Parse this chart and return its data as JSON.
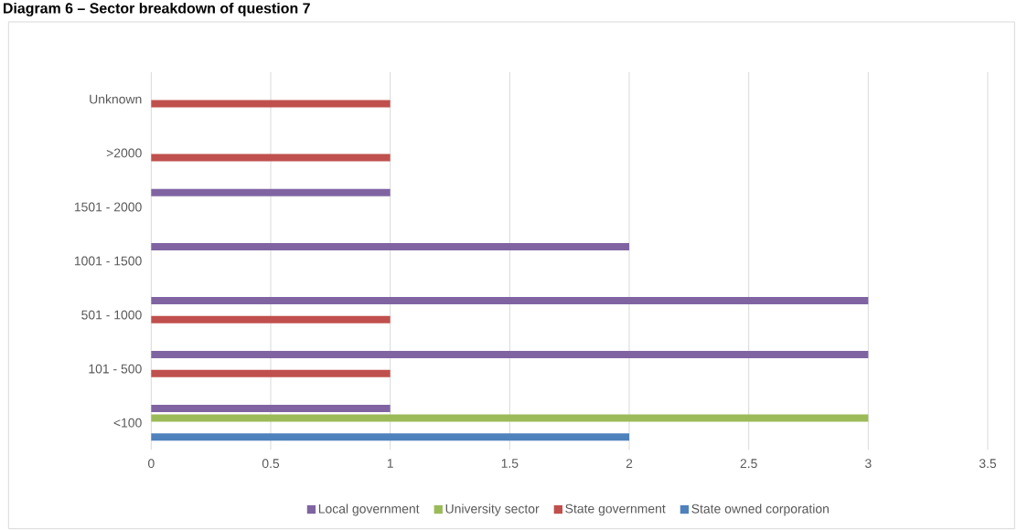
{
  "chart_data": {
    "type": "bar",
    "orientation": "horizontal",
    "title": "Diagram 6 – Sector breakdown of question 7",
    "categories": [
      "Unknown",
      ">2000",
      "1501 - 2000",
      "1001 - 1500",
      "501 - 1000",
      "101 - 500",
      "<100"
    ],
    "series": [
      {
        "name": "Local government",
        "color": "#8064a2",
        "values": [
          null,
          null,
          1,
          2,
          3,
          3,
          1
        ]
      },
      {
        "name": "University sector",
        "color": "#9bbb59",
        "values": [
          null,
          null,
          null,
          null,
          null,
          null,
          3
        ]
      },
      {
        "name": "State government",
        "color": "#c0504d",
        "values": [
          1,
          1,
          null,
          null,
          1,
          1,
          null
        ]
      },
      {
        "name": "State owned corporation",
        "color": "#4f81bd",
        "values": [
          null,
          null,
          null,
          null,
          null,
          null,
          2
        ]
      }
    ],
    "xlim": [
      0,
      3.5
    ],
    "xticks": [
      0,
      0.5,
      1,
      1.5,
      2,
      2.5,
      3,
      3.5
    ],
    "grid": "x",
    "legend": "bottom"
  }
}
